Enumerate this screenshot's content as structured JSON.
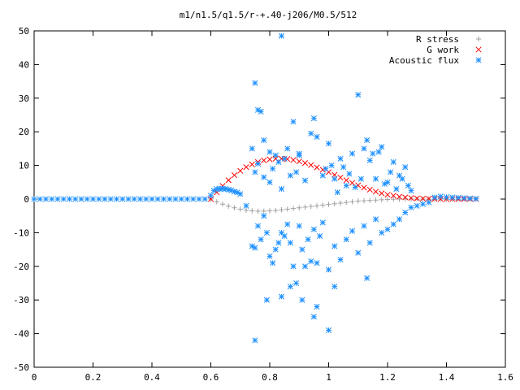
{
  "chart_data": {
    "type": "scatter",
    "title": "m1/n1.5/q1.5/r-+.40-j206/M0.5/512",
    "xlabel": "",
    "ylabel": "",
    "xlim": [
      0,
      1.6
    ],
    "ylim": [
      -50,
      50
    ],
    "xticks": [
      0,
      0.2,
      0.4,
      0.6,
      0.8,
      1,
      1.2,
      1.4,
      1.6
    ],
    "xtick_labels": [
      "0",
      "0.2",
      "0.4",
      "0.6",
      "0.8",
      "1",
      "1.2",
      "1.4",
      "1.6"
    ],
    "yticks": [
      -50,
      -40,
      -30,
      -20,
      -10,
      0,
      10,
      20,
      30,
      40,
      50
    ],
    "ytick_labels": [
      "-50",
      "-40",
      "-30",
      "-20",
      "-10",
      "0",
      "10",
      "20",
      "30",
      "40",
      "50"
    ],
    "grid": false,
    "legend_position": "top-right",
    "series": [
      {
        "name": "R stress",
        "marker": "plus",
        "color": "#a0a0a0",
        "x": [
          0.6,
          0.62,
          0.64,
          0.66,
          0.68,
          0.7,
          0.72,
          0.74,
          0.76,
          0.78,
          0.8,
          0.82,
          0.84,
          0.86,
          0.88,
          0.9,
          0.92,
          0.94,
          0.96,
          0.98,
          1.0,
          1.02,
          1.04,
          1.06,
          1.08,
          1.1,
          1.12,
          1.14,
          1.16,
          1.18,
          1.2,
          1.22,
          1.24,
          1.26,
          1.28,
          1.3,
          1.32,
          1.34,
          1.36,
          1.38,
          1.4,
          1.42,
          1.44,
          1.46,
          1.48,
          1.5
        ],
        "y": [
          0.0,
          -0.8,
          -1.5,
          -2.1,
          -2.6,
          -3.0,
          -3.3,
          -3.5,
          -3.6,
          -3.6,
          -3.5,
          -3.4,
          -3.2,
          -3.0,
          -2.8,
          -2.6,
          -2.4,
          -2.2,
          -2.0,
          -1.8,
          -1.6,
          -1.4,
          -1.2,
          -1.0,
          -0.8,
          -0.6,
          -0.5,
          -0.4,
          -0.3,
          -0.2,
          -0.1,
          -0.05,
          0.0,
          0.0,
          0.0,
          0.0,
          0.0,
          0.0,
          0.0,
          0.0,
          0.0,
          0.0,
          0.0,
          0.0,
          0.0,
          0.0
        ]
      },
      {
        "name": "G work",
        "marker": "cross",
        "color": "#ff0000",
        "x": [
          0.6,
          0.62,
          0.64,
          0.66,
          0.68,
          0.7,
          0.72,
          0.74,
          0.76,
          0.78,
          0.8,
          0.82,
          0.84,
          0.86,
          0.88,
          0.9,
          0.92,
          0.94,
          0.96,
          0.98,
          1.0,
          1.02,
          1.04,
          1.06,
          1.08,
          1.1,
          1.12,
          1.14,
          1.16,
          1.18,
          1.2,
          1.22,
          1.24,
          1.26,
          1.28,
          1.3,
          1.32,
          1.34,
          1.36,
          1.38,
          1.4,
          1.42,
          1.44,
          1.46,
          1.48,
          1.5
        ],
        "y": [
          0.0,
          2.0,
          3.9,
          5.6,
          7.1,
          8.4,
          9.5,
          10.3,
          11.0,
          11.5,
          11.8,
          12.0,
          12.0,
          11.9,
          11.6,
          11.2,
          10.7,
          10.1,
          9.4,
          8.7,
          8.0,
          7.2,
          6.4,
          5.6,
          4.8,
          4.1,
          3.4,
          2.8,
          2.2,
          1.7,
          1.3,
          1.0,
          0.7,
          0.5,
          0.3,
          0.2,
          0.15,
          0.1,
          0.05,
          0.0,
          0.0,
          0.0,
          0.0,
          0.0,
          0.0,
          0.0
        ]
      },
      {
        "name": "Acoustic flux",
        "marker": "star",
        "color": "#1e90ff",
        "x": [
          0.0,
          0.02,
          0.04,
          0.06,
          0.08,
          0.1,
          0.12,
          0.14,
          0.16,
          0.18,
          0.2,
          0.22,
          0.24,
          0.26,
          0.28,
          0.3,
          0.32,
          0.34,
          0.36,
          0.38,
          0.4,
          0.42,
          0.44,
          0.46,
          0.48,
          0.5,
          0.52,
          0.54,
          0.56,
          0.58,
          0.6,
          0.61,
          0.62,
          0.63,
          0.64,
          0.65,
          0.66,
          0.67,
          0.68,
          0.69,
          0.7,
          0.75,
          0.76,
          0.77,
          0.78,
          0.8,
          0.82,
          0.84,
          0.84,
          0.86,
          0.88,
          0.9,
          0.74,
          0.75,
          0.76,
          0.78,
          0.8,
          0.81,
          0.83,
          0.85,
          0.87,
          0.89,
          0.9,
          0.92,
          0.94,
          0.95,
          0.96,
          0.98,
          0.99,
          1.0,
          1.01,
          1.02,
          1.03,
          1.04,
          1.05,
          1.06,
          1.07,
          1.08,
          1.09,
          1.1,
          1.11,
          1.12,
          1.13,
          1.14,
          1.15,
          1.16,
          1.17,
          1.18,
          1.19,
          1.2,
          1.21,
          1.22,
          1.23,
          1.24,
          1.25,
          1.26,
          1.27,
          1.28,
          0.72,
          0.74,
          0.75,
          0.76,
          0.77,
          0.78,
          0.79,
          0.8,
          0.81,
          0.82,
          0.83,
          0.84,
          0.85,
          0.86,
          0.87,
          0.88,
          0.89,
          0.9,
          0.91,
          0.92,
          0.93,
          0.94,
          0.95,
          0.96,
          0.97,
          0.98,
          1.0,
          1.02,
          1.04,
          1.06,
          1.08,
          1.1,
          1.12,
          1.14,
          1.16,
          1.18,
          1.2,
          1.22,
          1.24,
          1.26,
          1.28,
          1.3,
          1.32,
          1.34,
          1.36,
          1.38,
          1.4,
          1.42,
          1.44,
          1.46,
          1.48,
          1.5,
          0.75,
          0.79,
          0.84,
          0.87,
          0.91,
          0.95,
          0.96,
          1.0,
          1.02,
          1.13
        ],
        "y": [
          0,
          0,
          0,
          0,
          0,
          0,
          0,
          0,
          0,
          0,
          0,
          0,
          0,
          0,
          0,
          0,
          0,
          0,
          0,
          0,
          0,
          0,
          0,
          0,
          0,
          0,
          0,
          0,
          0,
          0,
          1.0,
          2.5,
          3.0,
          3.0,
          3.1,
          3.0,
          2.8,
          2.6,
          2.2,
          2.0,
          1.5,
          34.5,
          26.5,
          26.0,
          17.5,
          14.0,
          13.0,
          48.5,
          3.0,
          15.0,
          23.0,
          13.5,
          15.0,
          8.0,
          10.5,
          6.5,
          5.0,
          9.0,
          11.0,
          12.0,
          7.0,
          8.0,
          13.0,
          5.5,
          19.5,
          24.0,
          18.5,
          7.0,
          9.0,
          16.5,
          10.0,
          6.0,
          2.0,
          12.0,
          9.5,
          4.0,
          7.5,
          13.5,
          3.5,
          31.0,
          6.0,
          15.0,
          17.5,
          11.5,
          13.5,
          6.0,
          14.0,
          15.5,
          4.5,
          5.0,
          8.0,
          11.0,
          3.0,
          7.0,
          6.0,
          9.5,
          4.0,
          2.5,
          -2.0,
          -14.0,
          -14.5,
          -8.0,
          -12.0,
          -5.0,
          -10.0,
          -17.0,
          -19.0,
          -15.0,
          -13.0,
          -10.0,
          -11.0,
          -7.5,
          -13.0,
          -20.0,
          -25.0,
          -8.0,
          -15.0,
          -20.0,
          -12.0,
          -18.5,
          -9.0,
          -19.0,
          -11.0,
          -7.0,
          -21.0,
          -14.0,
          -18.0,
          -12.0,
          -9.5,
          -16.0,
          -8.0,
          -13.0,
          -6.0,
          -10.0,
          -9.0,
          -7.5,
          -6.0,
          -4.0,
          -2.5,
          -2.0,
          -1.5,
          -1.0,
          0.5,
          0.8,
          0.6,
          0.5,
          0.4,
          0.3,
          0.2,
          0.1,
          -42.0,
          -30.0,
          -29.0,
          -26.0,
          -30.0,
          -35.0,
          -32.0,
          -39.0,
          -26.0,
          -23.5
        ]
      }
    ]
  }
}
